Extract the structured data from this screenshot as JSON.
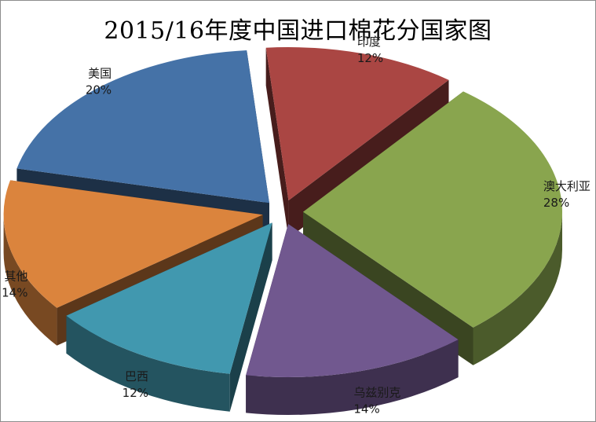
{
  "chart_data": {
    "type": "pie",
    "title": "2015/16年度中国进口棉花分国家图",
    "categories": [
      "印度",
      "澳大利亚",
      "乌兹别克",
      "巴西",
      "其他",
      "美国"
    ],
    "values": [
      12,
      28,
      14,
      12,
      14,
      20
    ],
    "value_labels": [
      "12%",
      "28%",
      "14%",
      "12%",
      "14%",
      "20%"
    ],
    "colors": [
      "#AA4643",
      "#89A54E",
      "#71588F",
      "#4198AF",
      "#DB843D",
      "#4572A7"
    ],
    "style": "3d-exploded"
  }
}
